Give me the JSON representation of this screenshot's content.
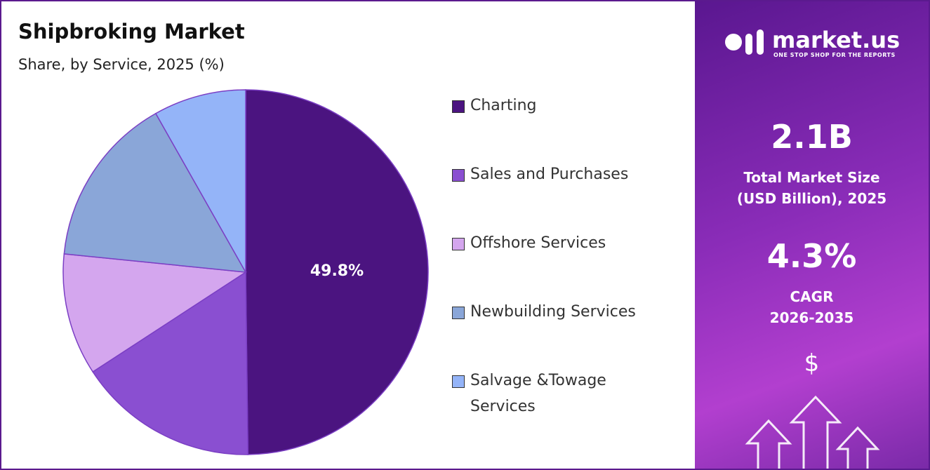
{
  "chart_data": {
    "type": "pie",
    "title": "Shipbroking Market",
    "subtitle": "Share, by Service, 2025 (%)",
    "categories": [
      "Charting",
      "Sales and Purchases",
      "Offshore Services",
      "Newbuilding Services",
      "Salvage &Towage Services"
    ],
    "values": [
      49.8,
      16.0,
      10.8,
      15.2,
      8.2
    ],
    "value_labels": [
      "49.8%",
      null,
      null,
      null,
      null
    ],
    "colors": [
      "#4b1480",
      "#8a4fd1",
      "#d4a6ee",
      "#8aa6d8",
      "#94b4f8"
    ]
  },
  "side_panel": {
    "brand": "market.us",
    "tagline": "ONE STOP SHOP FOR THE REPORTS",
    "market_size": "2.1B",
    "market_size_label": [
      "Total Market Size",
      "(USD Billion), 2025"
    ],
    "cagr": "4.3%",
    "cagr_label": [
      "CAGR",
      "2026-2035"
    ],
    "currency_icon": "$"
  }
}
